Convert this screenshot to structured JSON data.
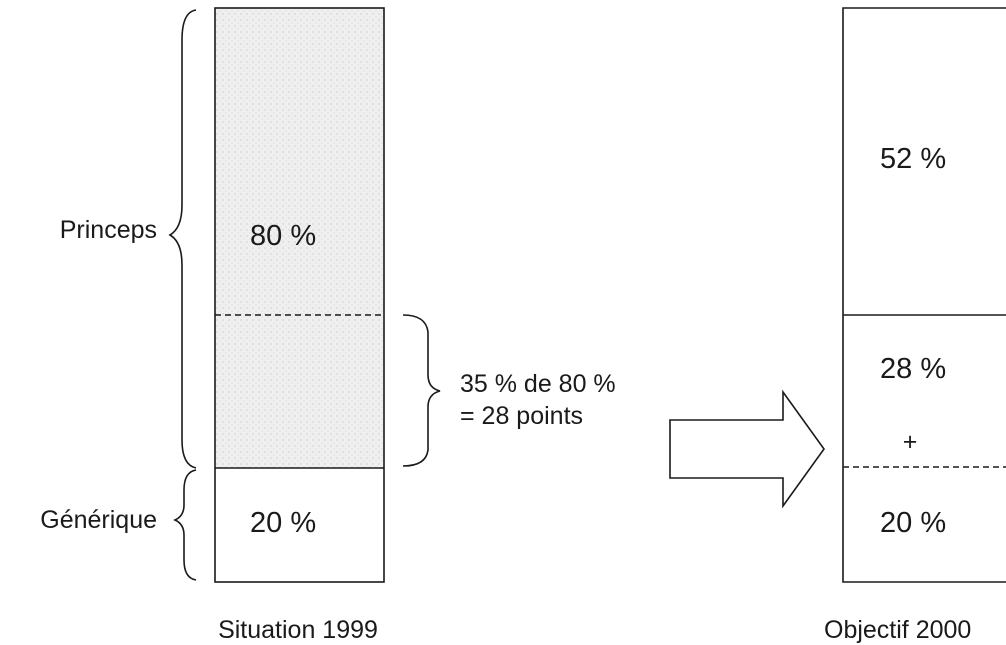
{
  "left_column": {
    "brace_princeps_label": "Princeps",
    "brace_generique_label": "Générique",
    "princeps_value": "80 %",
    "generique_value": "20 %",
    "caption": "Situation 1999"
  },
  "middle": {
    "note_line1": "35 % de 80 %",
    "note_line2": "= 28 points"
  },
  "right_column": {
    "top_value": "52 %",
    "middle_value": "28 %",
    "plus_sign": "+",
    "bottom_value": "20 %",
    "caption": "Objectif 2000"
  },
  "colors": {
    "stroke": "#1a1a1a",
    "shaded_fill": "#e9e9e9"
  }
}
